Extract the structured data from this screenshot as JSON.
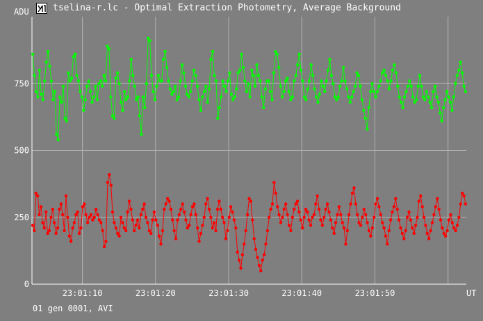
{
  "window": {
    "title": "tselina-r.lc - Optimal Extraction Photometry, Average Background",
    "icon": "photometry-app-icon"
  },
  "footer": {
    "text": "01 gen 0001, AVI"
  },
  "colors": {
    "background": "#7f7f7f",
    "grid": "#b3b3b3",
    "axis": "#ffffff",
    "series_green": "#00ff00",
    "series_red": "#ff0000"
  },
  "chart_data": {
    "type": "line",
    "ylabel": "ADU",
    "xlabel": "UT",
    "ylim": [
      0,
      1000
    ],
    "yticks": [
      0,
      250,
      500,
      750
    ],
    "ytick_labels": [
      "0",
      "250",
      "500",
      "750"
    ],
    "xlim": [
      0,
      59.4
    ],
    "xticks": [
      6.9,
      16.9,
      26.9,
      36.9,
      46.9,
      56.9
    ],
    "xtick_labels": [
      "23:01:10",
      "23:01:20",
      "23:01:30",
      "23:01:40",
      "23:01:50",
      ""
    ],
    "grid": true,
    "markers": true,
    "series": [
      {
        "color": "#00ff00",
        "mean": 735,
        "sample_every_s": 0.133,
        "x_first": 0.1,
        "x_last": 59.3,
        "values": [
          860,
          780,
          720,
          700,
          800,
          710,
          690,
          760,
          830,
          870,
          815,
          760,
          690,
          720,
          560,
          540,
          700,
          680,
          740,
          620,
          610,
          790,
          760,
          770,
          850,
          860,
          780,
          760,
          720,
          700,
          650,
          690,
          740,
          760,
          720,
          680,
          700,
          740,
          690,
          750,
          760,
          740,
          780,
          760,
          890,
          880,
          700,
          630,
          620,
          770,
          790,
          750,
          680,
          650,
          720,
          690,
          700,
          760,
          840,
          780,
          740,
          690,
          700,
          630,
          560,
          700,
          660,
          750,
          920,
          910,
          780,
          720,
          690,
          740,
          780,
          760,
          760,
          840,
          870,
          810,
          760,
          730,
          710,
          720,
          740,
          690,
          700,
          760,
          820,
          790,
          740,
          710,
          700,
          720,
          760,
          800,
          780,
          740,
          690,
          650,
          700,
          720,
          740,
          680,
          730,
          840,
          870,
          780,
          760,
          620,
          660,
          700,
          760,
          740,
          720,
          760,
          790,
          710,
          690,
          700,
          730,
          790,
          800,
          860,
          810,
          760,
          720,
          750,
          700,
          800,
          780,
          740,
          820,
          780,
          760,
          700,
          660,
          730,
          760,
          760,
          720,
          690,
          790,
          870,
          860,
          810,
          740,
          700,
          720,
          760,
          770,
          720,
          690,
          700,
          760,
          780,
          820,
          860,
          800,
          760,
          700,
          690,
          730,
          760,
          820,
          780,
          730,
          700,
          680,
          710,
          760,
          740,
          720,
          760,
          800,
          840,
          780,
          750,
          700,
          690,
          700,
          740,
          760,
          810,
          760,
          730,
          700,
          680,
          700,
          720,
          740,
          790,
          780,
          740,
          690,
          650,
          620,
          580,
          660,
          720,
          750,
          720,
          700,
          720,
          740,
          760,
          790,
          800,
          780,
          760,
          730,
          760,
          800,
          820,
          790,
          740,
          700,
          680,
          660,
          700,
          720,
          740,
          760,
          740,
          700,
          680,
          690,
          740,
          780,
          740,
          700,
          690,
          720,
          700,
          680,
          660,
          720,
          740,
          700,
          680,
          640,
          610,
          660,
          690,
          720,
          700,
          680,
          650,
          700,
          750,
          780,
          800,
          830,
          790,
          740,
          720
        ]
      },
      {
        "color": "#ff0000",
        "mean": 245,
        "sample_every_s": 0.133,
        "x_first": 0.1,
        "x_last": 59.3,
        "values": [
          220,
          200,
          340,
          330,
          260,
          290,
          230,
          210,
          270,
          190,
          200,
          250,
          280,
          230,
          190,
          210,
          280,
          300,
          260,
          200,
          330,
          250,
          180,
          160,
          210,
          230,
          260,
          270,
          190,
          210,
          290,
          300,
          260,
          230,
          250,
          260,
          240,
          250,
          280,
          260,
          240,
          230,
          200,
          140,
          160,
          380,
          410,
          370,
          270,
          230,
          210,
          190,
          180,
          250,
          230,
          210,
          200,
          270,
          310,
          280,
          240,
          200,
          220,
          240,
          210,
          260,
          280,
          300,
          250,
          230,
          200,
          190,
          240,
          270,
          240,
          220,
          180,
          150,
          200,
          280,
          300,
          320,
          310,
          280,
          240,
          200,
          170,
          240,
          260,
          280,
          300,
          270,
          240,
          210,
          220,
          260,
          290,
          300,
          260,
          210,
          160,
          190,
          220,
          250,
          300,
          320,
          280,
          250,
          210,
          230,
          200,
          280,
          310,
          280,
          250,
          230,
          170,
          200,
          250,
          290,
          270,
          240,
          210,
          120,
          90,
          60,
          110,
          150,
          200,
          260,
          320,
          310,
          240,
          170,
          130,
          100,
          70,
          50,
          90,
          110,
          150,
          200,
          250,
          280,
          300,
          380,
          340,
          290,
          260,
          230,
          250,
          280,
          300,
          260,
          220,
          200,
          250,
          280,
          300,
          310,
          270,
          240,
          210,
          250,
          280,
          270,
          240,
          220,
          250,
          260,
          300,
          330,
          280,
          240,
          220,
          250,
          280,
          300,
          270,
          240,
          210,
          190,
          230,
          260,
          290,
          260,
          230,
          210,
          150,
          200,
          260,
          300,
          340,
          360,
          300,
          260,
          230,
          220,
          250,
          280,
          260,
          230,
          200,
          180,
          210,
          250,
          300,
          320,
          290,
          260,
          230,
          210,
          180,
          150,
          200,
          240,
          270,
          290,
          320,
          280,
          240,
          210,
          190,
          170,
          200,
          250,
          270,
          240,
          210,
          190,
          220,
          250,
          310,
          330,
          290,
          250,
          220,
          190,
          170,
          200,
          230,
          260,
          290,
          320,
          280,
          240,
          210,
          190,
          180,
          200,
          240,
          260,
          230,
          210,
          200,
          220,
          250,
          300,
          340,
          330,
          300
        ]
      }
    ]
  }
}
